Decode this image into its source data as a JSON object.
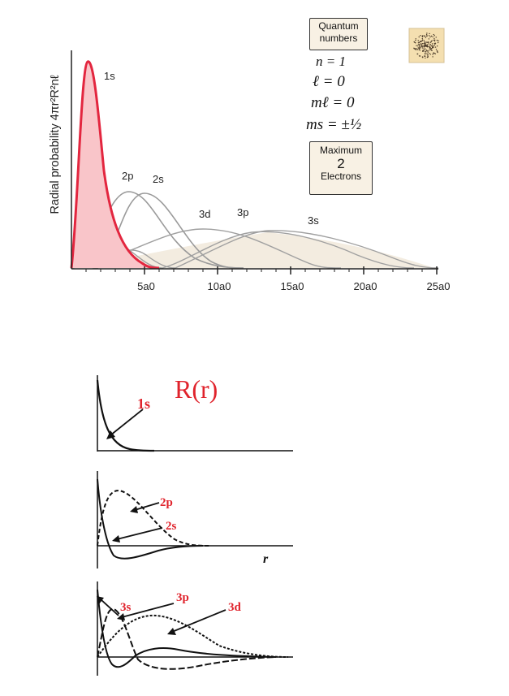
{
  "top_panel": {
    "y_label": "Radial probability 4πr²R²nℓ",
    "curve_labels": {
      "s1": "1s",
      "p2": "2p",
      "s2": "2s",
      "d3": "3d",
      "p3": "3p",
      "s3": "3s"
    },
    "x_ticks": [
      "5a0",
      "10a0",
      "15a0",
      "20a0",
      "25a0"
    ],
    "quantum_box": {
      "line1": "Quantum",
      "line2": "numbers"
    },
    "quantum_values": {
      "n": "n = 1",
      "l": "ℓ = 0",
      "ml": "mℓ = 0",
      "ms": "ms = ±½"
    },
    "max_box": {
      "line1": "Maximum",
      "count": "2",
      "line3": "Electrons"
    },
    "colors": {
      "1s_curve": "#e3263f",
      "1s_fill": "#f9c5c9",
      "other_curves": "#9a9a9a",
      "box_bg": "#f8f1e4"
    }
  },
  "bottom_panel": {
    "title": "R(r)",
    "labels": {
      "s1": "1s",
      "p2": "2p",
      "s2": "2s",
      "s3": "3s",
      "p3": "3p",
      "d3": "3d"
    },
    "r_label": "r",
    "colors": {
      "title": "#e0232c",
      "labels": "#e0232c",
      "curves": "#111111"
    }
  },
  "icons": [
    "electron-cloud-icon"
  ]
}
